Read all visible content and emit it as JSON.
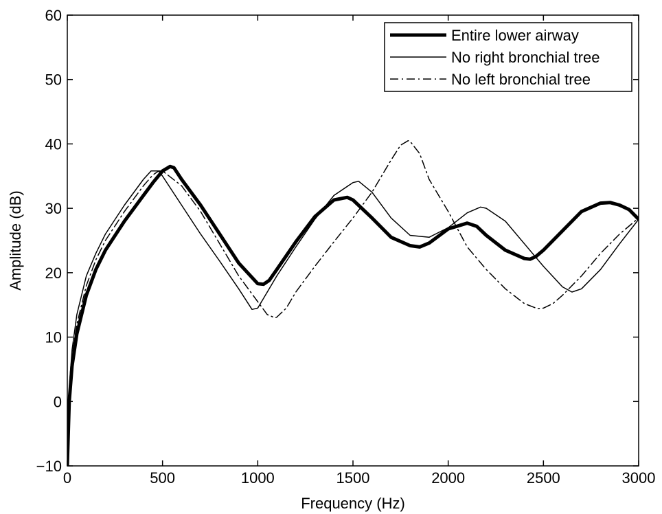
{
  "chart_data": {
    "type": "line",
    "title": "",
    "xlabel": "Frequency (Hz)",
    "ylabel": "Amplitude (dB)",
    "xlim": [
      0,
      3000
    ],
    "ylim": [
      -10,
      60
    ],
    "xticks": [
      0,
      500,
      1000,
      1500,
      2000,
      2500,
      3000
    ],
    "yticks": [
      -10,
      0,
      10,
      20,
      30,
      40,
      50,
      60
    ],
    "grid": false,
    "legend_position": "top-right",
    "series": [
      {
        "name": "Entire lower airway",
        "style": "solid-thick",
        "color": "#000000",
        "x": [
          0,
          10,
          25,
          50,
          100,
          150,
          200,
          300,
          400,
          450,
          500,
          540,
          560,
          600,
          700,
          800,
          900,
          1000,
          1030,
          1060,
          1100,
          1200,
          1300,
          1400,
          1470,
          1500,
          1600,
          1700,
          1800,
          1850,
          1900,
          2000,
          2100,
          2150,
          2200,
          2300,
          2400,
          2430,
          2460,
          2500,
          2600,
          2700,
          2800,
          2850,
          2900,
          2950,
          3000
        ],
        "values": [
          -10,
          0,
          5.5,
          10.5,
          16.5,
          20.5,
          23.5,
          28,
          32,
          34,
          35.8,
          36.5,
          36.3,
          34.5,
          30.5,
          26,
          21.5,
          18.3,
          18.2,
          18.8,
          20.5,
          24.8,
          28.7,
          31.3,
          31.7,
          31.3,
          28.5,
          25.5,
          24.2,
          24,
          24.6,
          26.8,
          27.7,
          27.2,
          25.8,
          23.5,
          22.2,
          22.1,
          22.5,
          23.5,
          26.5,
          29.5,
          30.8,
          30.9,
          30.5,
          29.8,
          28.3
        ]
      },
      {
        "name": "No right bronchial tree",
        "style": "solid-thin",
        "color": "#000000",
        "x": [
          0,
          10,
          25,
          50,
          100,
          150,
          200,
          300,
          400,
          440,
          480,
          500,
          600,
          700,
          800,
          900,
          970,
          1000,
          1050,
          1100,
          1200,
          1300,
          1400,
          1500,
          1530,
          1600,
          1700,
          1800,
          1900,
          2000,
          2100,
          2170,
          2200,
          2300,
          2400,
          2500,
          2600,
          2650,
          2700,
          2800,
          2900,
          3000
        ],
        "values": [
          -10,
          2,
          8,
          13.5,
          19.5,
          23,
          26,
          30.5,
          34.5,
          35.8,
          35.8,
          35,
          30.5,
          26,
          21.8,
          17.5,
          14.3,
          14.5,
          17,
          19.5,
          24,
          28.3,
          32,
          34,
          34.2,
          32.5,
          28.5,
          25.8,
          25.5,
          27,
          29.3,
          30.2,
          30,
          28,
          24.5,
          21,
          17.8,
          17,
          17.5,
          20.5,
          24.5,
          28.3
        ]
      },
      {
        "name": "No left bronchial tree",
        "style": "dash-dot",
        "color": "#000000",
        "x": [
          0,
          10,
          25,
          50,
          100,
          150,
          200,
          300,
          400,
          450,
          480,
          500,
          600,
          700,
          800,
          900,
          1000,
          1050,
          1090,
          1100,
          1150,
          1200,
          1300,
          1400,
          1500,
          1600,
          1700,
          1750,
          1790,
          1800,
          1850,
          1900,
          2000,
          2100,
          2200,
          2300,
          2400,
          2470,
          2500,
          2550,
          2600,
          2700,
          2800,
          2900,
          3000
        ],
        "values": [
          -10,
          1,
          7,
          12,
          18,
          22,
          25,
          29.5,
          33.5,
          35.2,
          35.8,
          35.8,
          33.5,
          29.5,
          24.5,
          19.5,
          15.5,
          13.5,
          13,
          13.1,
          14.5,
          17,
          21,
          24.8,
          28.5,
          32.5,
          37.5,
          39.8,
          40.5,
          40.4,
          38.5,
          34.5,
          29.5,
          24,
          20.5,
          17.5,
          15.2,
          14.4,
          14.5,
          15.2,
          16.5,
          19.5,
          23,
          26,
          28.5
        ]
      }
    ]
  }
}
